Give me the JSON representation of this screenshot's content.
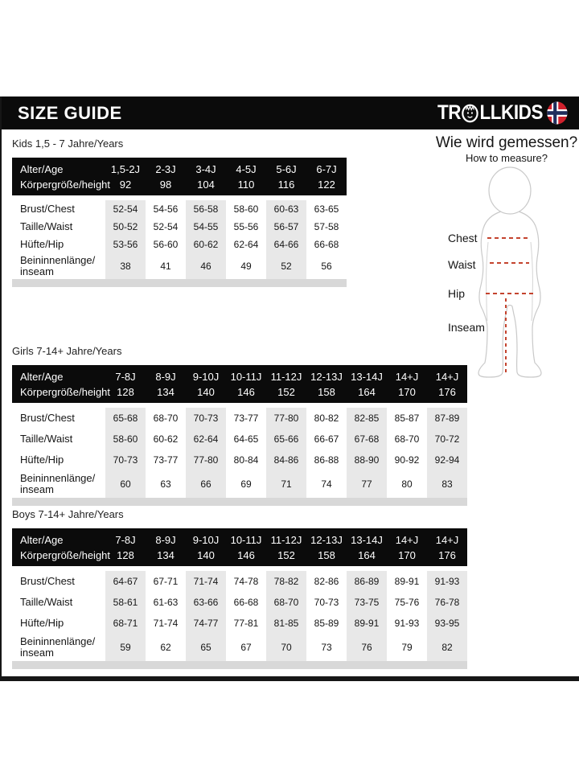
{
  "header": {
    "title": "SIZE GUIDE",
    "brand_prefix": "TR",
    "brand_suffix": "LLKIDS"
  },
  "measure_guide": {
    "title_de": "Wie wird gemessen?",
    "title_en": "How to measure?",
    "labels": [
      "Chest",
      "Waist",
      "Hip",
      "Inseam"
    ]
  },
  "tables": [
    {
      "title": "Kids 1,5 - 7 Jahre/Years",
      "age_label": "Alter/Age",
      "height_label": "Körpergröße/height",
      "ages": [
        "1,5-2J",
        "2-3J",
        "3-4J",
        "4-5J",
        "5-6J",
        "6-7J"
      ],
      "heights": [
        "92",
        "98",
        "104",
        "110",
        "116",
        "122"
      ],
      "rows": [
        {
          "label": "Brust/Chest",
          "values": [
            "52-54",
            "54-56",
            "56-58",
            "58-60",
            "60-63",
            "63-65"
          ]
        },
        {
          "label": "Taille/Waist",
          "values": [
            "50-52",
            "52-54",
            "54-55",
            "55-56",
            "56-57",
            "57-58"
          ]
        },
        {
          "label": "Hüfte/Hip",
          "values": [
            "53-56",
            "56-60",
            "60-62",
            "62-64",
            "64-66",
            "66-68"
          ]
        },
        {
          "label": "Beininnenlänge/ inseam",
          "values": [
            "38",
            "41",
            "46",
            "49",
            "52",
            "56"
          ]
        }
      ]
    },
    {
      "title": "Girls 7-14+ Jahre/Years",
      "age_label": "Alter/Age",
      "height_label": "Körpergröße/height",
      "ages": [
        "7-8J",
        "8-9J",
        "9-10J",
        "10-11J",
        "11-12J",
        "12-13J",
        "13-14J",
        "14+J",
        "14+J"
      ],
      "heights": [
        "128",
        "134",
        "140",
        "146",
        "152",
        "158",
        "164",
        "170",
        "176"
      ],
      "rows": [
        {
          "label": "Brust/Chest",
          "values": [
            "65-68",
            "68-70",
            "70-73",
            "73-77",
            "77-80",
            "80-82",
            "82-85",
            "85-87",
            "87-89"
          ]
        },
        {
          "label": "Taille/Waist",
          "values": [
            "58-60",
            "60-62",
            "62-64",
            "64-65",
            "65-66",
            "66-67",
            "67-68",
            "68-70",
            "70-72"
          ]
        },
        {
          "label": "Hüfte/Hip",
          "values": [
            "70-73",
            "73-77",
            "77-80",
            "80-84",
            "84-86",
            "86-88",
            "88-90",
            "90-92",
            "92-94"
          ]
        },
        {
          "label": "Beininnenlänge/ inseam",
          "values": [
            "60",
            "63",
            "66",
            "69",
            "71",
            "74",
            "77",
            "80",
            "83"
          ]
        }
      ]
    },
    {
      "title": "Boys 7-14+ Jahre/Years",
      "age_label": "Alter/Age",
      "height_label": "Körpergröße/height",
      "ages": [
        "7-8J",
        "8-9J",
        "9-10J",
        "10-11J",
        "11-12J",
        "12-13J",
        "13-14J",
        "14+J",
        "14+J"
      ],
      "heights": [
        "128",
        "134",
        "140",
        "146",
        "152",
        "158",
        "164",
        "170",
        "176"
      ],
      "rows": [
        {
          "label": "Brust/Chest",
          "values": [
            "64-67",
            "67-71",
            "71-74",
            "74-78",
            "78-82",
            "82-86",
            "86-89",
            "89-91",
            "91-93"
          ]
        },
        {
          "label": "Taille/Waist",
          "values": [
            "58-61",
            "61-63",
            "63-66",
            "66-68",
            "68-70",
            "70-73",
            "73-75",
            "75-76",
            "76-78"
          ]
        },
        {
          "label": "Hüfte/Hip",
          "values": [
            "68-71",
            "71-74",
            "74-77",
            "77-81",
            "81-85",
            "85-89",
            "89-91",
            "91-93",
            "93-95"
          ]
        },
        {
          "label": "Beininnenlänge/ inseam",
          "values": [
            "59",
            "62",
            "65",
            "67",
            "70",
            "73",
            "76",
            "79",
            "82"
          ]
        }
      ]
    }
  ],
  "colors": {
    "header_bg": "#0b0b0b",
    "stripe_gray": "#e8e8e8",
    "footer_strip_gray": "#d8d8d8",
    "measure_line_red": "#c4432e",
    "figure_outline_gray": "#c9c9c9",
    "flag_red": "#d0202c",
    "flag_blue": "#1f2d5c"
  }
}
